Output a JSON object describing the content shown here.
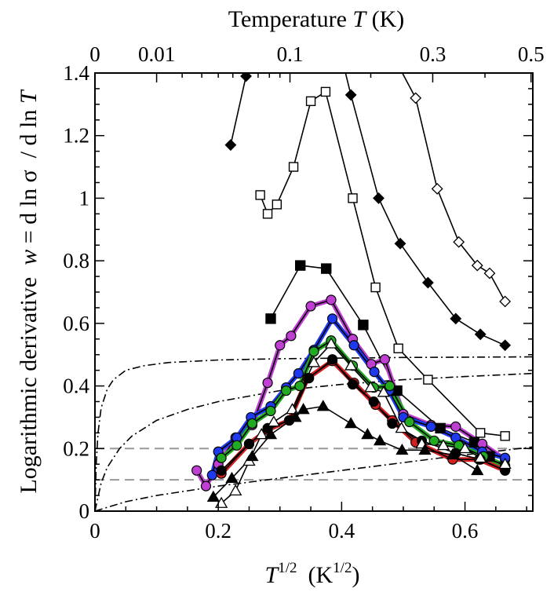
{
  "chart_data": {
    "type": "line",
    "top_axis": {
      "label": "Temperature T (K)",
      "label_text": "Temperature ",
      "label_var": "T",
      "label_unit": " (K)",
      "ticks": [
        0,
        0.01,
        0.1,
        0.3,
        0.5
      ],
      "tick_labels": [
        "0",
        "0.01",
        "0.1",
        "0.3",
        "0.5"
      ]
    },
    "x_axis": {
      "label": "T^{1/2} (K^{1/2})",
      "label_var": "T",
      "label_exp": "1/2",
      "label_unit_open": "(K",
      "label_unit_exp": "1/2",
      "label_unit_close": ")",
      "range": [
        0,
        0.71
      ],
      "ticks": [
        0,
        0.2,
        0.4,
        0.6
      ],
      "tick_labels": [
        "0",
        "0.2",
        "0.4",
        "0.6"
      ]
    },
    "y_axis": {
      "label": "Logarithmic derivative w = d ln σ / d ln T",
      "label_prefix": "Logarithmic derivative  ",
      "label_var_w": "w",
      "label_mid": " = d ln σ  / d ln ",
      "label_var_T": "T",
      "range": [
        0,
        1.4
      ],
      "ticks": [
        0,
        0.2,
        0.4,
        0.6,
        0.8,
        1,
        1.2,
        1.4
      ],
      "tick_labels": [
        "0",
        "0.2",
        "0.4",
        "0.6",
        "0.8",
        "1",
        "1.2",
        "1.4"
      ]
    },
    "grid": false,
    "reference_lines": [
      {
        "style": "dashed",
        "y": 0.2,
        "color": "#999999"
      },
      {
        "style": "dashed",
        "y": 0.1,
        "color": "#999999"
      }
    ],
    "curves": [
      {
        "style": "dash-dot",
        "x": [
          0,
          0.002,
          0.005,
          0.01,
          0.02,
          0.03,
          0.05,
          0.08,
          0.12,
          0.2,
          0.3,
          0.4,
          0.5,
          0.6,
          0.71
        ],
        "y": [
          0,
          0.15,
          0.25,
          0.33,
          0.39,
          0.42,
          0.45,
          0.465,
          0.475,
          0.483,
          0.487,
          0.489,
          0.491,
          0.492,
          0.493
        ]
      },
      {
        "style": "dash-dot",
        "x": [
          0,
          0.01,
          0.02,
          0.04,
          0.06,
          0.1,
          0.15,
          0.2,
          0.3,
          0.4,
          0.5,
          0.6,
          0.71
        ],
        "y": [
          0,
          0.09,
          0.14,
          0.2,
          0.24,
          0.29,
          0.325,
          0.35,
          0.385,
          0.405,
          0.42,
          0.43,
          0.44
        ]
      },
      {
        "style": "dash-dot",
        "x": [
          0,
          0.05,
          0.1,
          0.2,
          0.3,
          0.4,
          0.5,
          0.6,
          0.71
        ],
        "y": [
          0,
          0.03,
          0.05,
          0.08,
          0.105,
          0.13,
          0.155,
          0.18,
          0.205
        ]
      }
    ],
    "series": [
      {
        "marker": "filled-diamond",
        "color": "#000000",
        "points": [
          [
            0.22,
            1.17
          ],
          [
            0.245,
            1.39
          ],
          [
            0.255,
            1.45
          ]
        ]
      },
      {
        "marker": "filled-diamond",
        "color": "#000000",
        "points": [
          [
            0.4,
            1.45
          ],
          [
            0.415,
            1.33
          ],
          [
            0.46,
            1.0
          ],
          [
            0.495,
            0.855
          ],
          [
            0.54,
            0.73
          ],
          [
            0.585,
            0.615
          ],
          [
            0.625,
            0.565
          ],
          [
            0.665,
            0.53
          ]
        ]
      },
      {
        "marker": "open-diamond",
        "color": "#000000",
        "points": [
          [
            0.485,
            1.45
          ],
          [
            0.52,
            1.32
          ],
          [
            0.555,
            1.03
          ],
          [
            0.59,
            0.86
          ],
          [
            0.62,
            0.785
          ],
          [
            0.64,
            0.76
          ],
          [
            0.665,
            0.67
          ]
        ]
      },
      {
        "marker": "open-square",
        "color": "#000000",
        "points": [
          [
            0.268,
            1.01
          ],
          [
            0.28,
            0.95
          ],
          [
            0.295,
            0.98
          ],
          [
            0.322,
            1.1
          ],
          [
            0.35,
            1.31
          ],
          [
            0.374,
            1.34
          ],
          [
            0.418,
            1.0
          ],
          [
            0.455,
            0.715
          ],
          [
            0.492,
            0.52
          ],
          [
            0.54,
            0.42
          ],
          [
            0.625,
            0.25
          ],
          [
            0.665,
            0.24
          ]
        ]
      },
      {
        "marker": "filled-square",
        "color": "#000000",
        "points": [
          [
            0.285,
            0.615
          ],
          [
            0.333,
            0.785
          ],
          [
            0.375,
            0.775
          ],
          [
            0.435,
            0.595
          ],
          [
            0.49,
            0.385
          ],
          [
            0.56,
            0.265
          ],
          [
            0.615,
            0.22
          ],
          [
            0.64,
            0.175
          ]
        ]
      },
      {
        "marker": "filled-circle",
        "color": "#bf3fd2",
        "points": [
          [
            0.165,
            0.13
          ],
          [
            0.18,
            0.08
          ],
          [
            0.2,
            0.15
          ],
          [
            0.228,
            0.235
          ],
          [
            0.255,
            0.275
          ],
          [
            0.28,
            0.41
          ],
          [
            0.3,
            0.53
          ],
          [
            0.318,
            0.56
          ],
          [
            0.35,
            0.655
          ],
          [
            0.383,
            0.675
          ],
          [
            0.418,
            0.55
          ],
          [
            0.448,
            0.47
          ],
          [
            0.47,
            0.485
          ],
          [
            0.5,
            0.31
          ],
          [
            0.545,
            0.275
          ],
          [
            0.585,
            0.27
          ],
          [
            0.628,
            0.215
          ],
          [
            0.665,
            0.165
          ]
        ]
      },
      {
        "marker": "filled-circle",
        "color": "#1f39ee",
        "points": [
          [
            0.19,
            0.115
          ],
          [
            0.2,
            0.19
          ],
          [
            0.23,
            0.235
          ],
          [
            0.253,
            0.3
          ],
          [
            0.285,
            0.335
          ],
          [
            0.31,
            0.395
          ],
          [
            0.33,
            0.44
          ],
          [
            0.355,
            0.515
          ],
          [
            0.385,
            0.615
          ],
          [
            0.42,
            0.53
          ],
          [
            0.453,
            0.445
          ],
          [
            0.477,
            0.385
          ],
          [
            0.5,
            0.3
          ],
          [
            0.545,
            0.27
          ],
          [
            0.585,
            0.235
          ],
          [
            0.628,
            0.19
          ],
          [
            0.665,
            0.17
          ]
        ]
      },
      {
        "marker": "filled-circle",
        "color": "#22aa22",
        "points": [
          [
            0.205,
            0.17
          ],
          [
            0.23,
            0.21
          ],
          [
            0.255,
            0.28
          ],
          [
            0.285,
            0.32
          ],
          [
            0.31,
            0.385
          ],
          [
            0.332,
            0.4
          ],
          [
            0.355,
            0.51
          ],
          [
            0.383,
            0.545
          ],
          [
            0.418,
            0.465
          ],
          [
            0.452,
            0.395
          ],
          [
            0.478,
            0.4
          ],
          [
            0.51,
            0.285
          ],
          [
            0.55,
            0.225
          ],
          [
            0.59,
            0.21
          ],
          [
            0.63,
            0.175
          ],
          [
            0.665,
            0.145
          ]
        ]
      },
      {
        "marker": "filled-circle",
        "color": "#d42020",
        "points": [
          [
            0.205,
            0.12
          ],
          [
            0.25,
            0.215
          ],
          [
            0.28,
            0.26
          ],
          [
            0.315,
            0.29
          ],
          [
            0.345,
            0.425
          ],
          [
            0.385,
            0.48
          ],
          [
            0.42,
            0.41
          ],
          [
            0.455,
            0.34
          ],
          [
            0.482,
            0.29
          ],
          [
            0.52,
            0.22
          ],
          [
            0.58,
            0.165
          ],
          [
            0.623,
            0.165
          ],
          [
            0.665,
            0.13
          ]
        ]
      },
      {
        "marker": "filled-circle",
        "color": "#000000",
        "points": [
          [
            0.205,
            0.13
          ],
          [
            0.25,
            0.215
          ],
          [
            0.28,
            0.265
          ],
          [
            0.315,
            0.29
          ],
          [
            0.347,
            0.425
          ],
          [
            0.385,
            0.485
          ],
          [
            0.418,
            0.405
          ],
          [
            0.452,
            0.35
          ],
          [
            0.482,
            0.28
          ],
          [
            0.53,
            0.225
          ],
          [
            0.585,
            0.185
          ],
          [
            0.625,
            0.165
          ],
          [
            0.665,
            0.13
          ]
        ]
      },
      {
        "marker": "open-triangle",
        "color": "#000000",
        "points": [
          [
            0.205,
            0.025
          ],
          [
            0.228,
            0.065
          ],
          [
            0.25,
            0.16
          ],
          [
            0.27,
            0.245
          ],
          [
            0.29,
            0.285
          ],
          [
            0.32,
            0.325
          ],
          [
            0.355,
            0.475
          ],
          [
            0.383,
            0.535
          ],
          [
            0.415,
            0.465
          ],
          [
            0.447,
            0.395
          ],
          [
            0.468,
            0.38
          ],
          [
            0.497,
            0.265
          ],
          [
            0.53,
            0.215
          ],
          [
            0.565,
            0.21
          ],
          [
            0.6,
            0.2
          ],
          [
            0.625,
            0.17
          ],
          [
            0.665,
            0.15
          ]
        ]
      },
      {
        "marker": "filled-triangle",
        "color": "#000000",
        "points": [
          [
            0.192,
            0.045
          ],
          [
            0.222,
            0.105
          ],
          [
            0.255,
            0.175
          ],
          [
            0.285,
            0.245
          ],
          [
            0.325,
            0.3
          ],
          [
            0.338,
            0.325
          ],
          [
            0.37,
            0.335
          ],
          [
            0.415,
            0.28
          ],
          [
            0.442,
            0.245
          ],
          [
            0.462,
            0.225
          ],
          [
            0.498,
            0.195
          ],
          [
            0.535,
            0.195
          ],
          [
            0.58,
            0.18
          ],
          [
            0.62,
            0.13
          ]
        ]
      }
    ]
  }
}
